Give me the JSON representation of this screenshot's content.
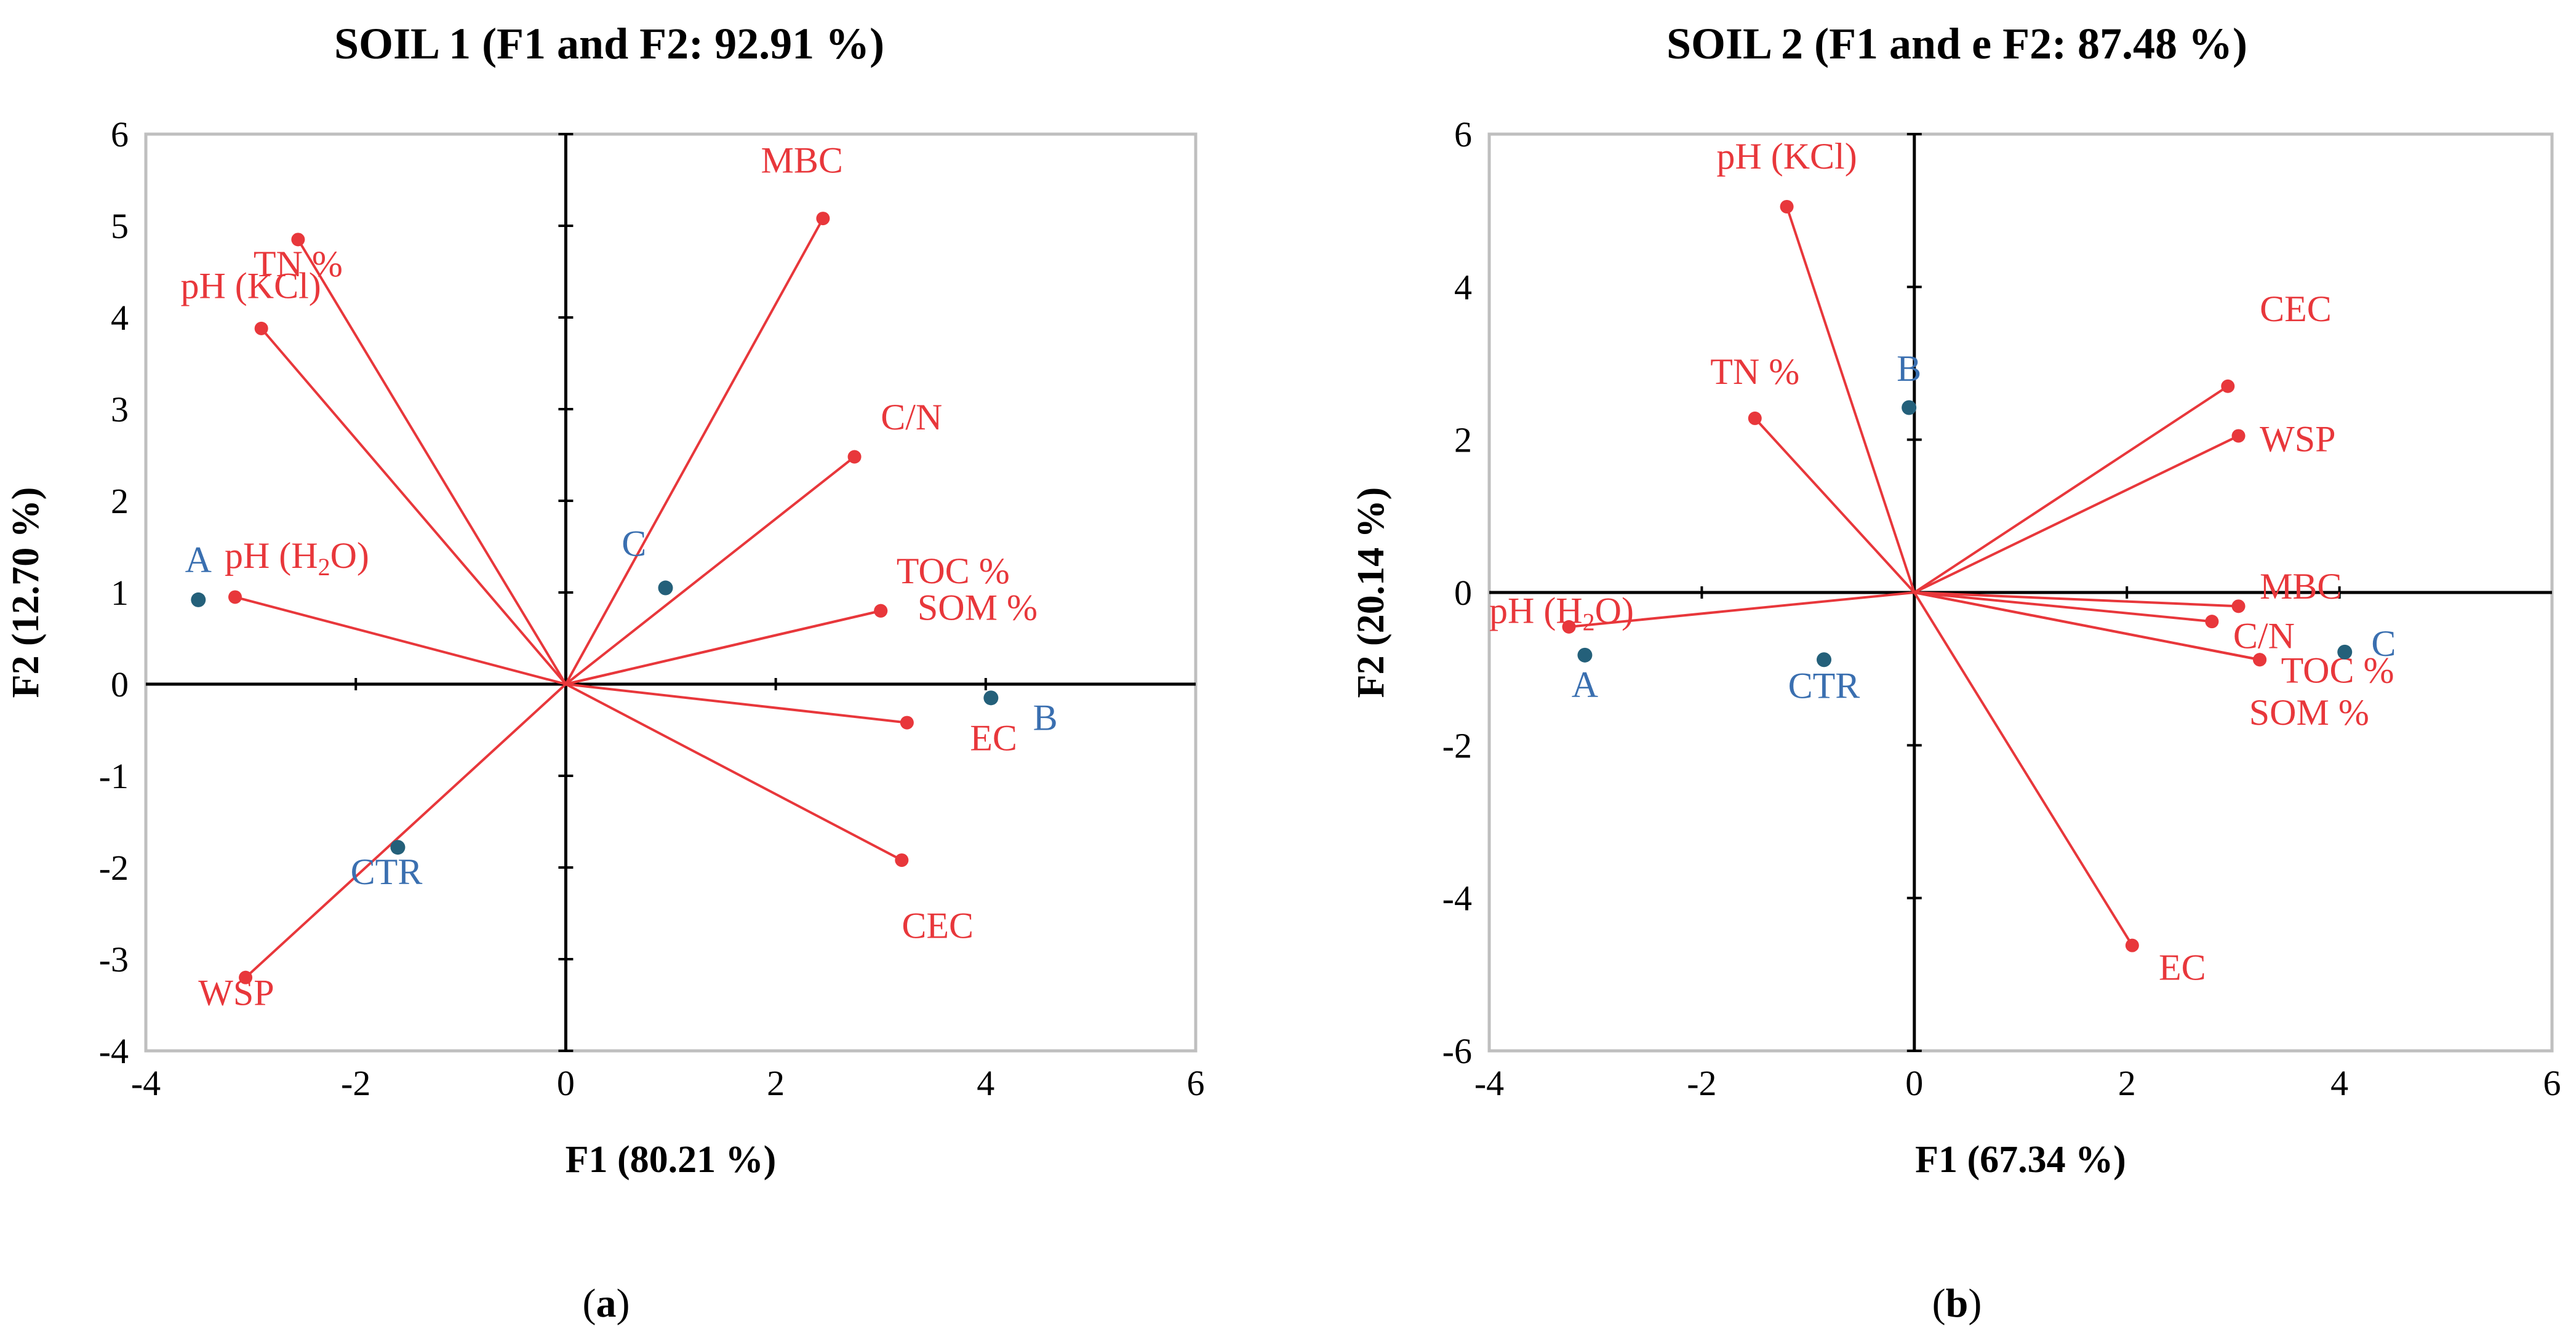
{
  "colors": {
    "variable": "#e8373b",
    "observation_label": "#3a6fb0",
    "observation_point": "#24607a",
    "axis": "#000000",
    "frame": "#bfbfbf"
  },
  "chart_data": [
    {
      "id": "soil1",
      "type": "scatter",
      "subtype": "pca-biplot",
      "title": "SOIL 1 (F1 and F2: 92.91 %)",
      "xlabel": "F1 (80.21 %)",
      "ylabel_main": "F2 (12.70 %)",
      "xlim": [
        -4,
        6
      ],
      "ylim": [
        -4,
        6
      ],
      "xticks": [
        "-4",
        "-2",
        "0",
        "2",
        "4",
        "6"
      ],
      "yticks": [
        "-4",
        "-3",
        "-2",
        "-1",
        "0",
        "1",
        "2",
        "3",
        "4",
        "5",
        "6"
      ],
      "caption": {
        "open": "(",
        "letter": "a",
        "close": ")"
      },
      "variables": [
        {
          "name": "TN %",
          "x": -2.55,
          "y": 4.85,
          "label_anchor": "middle",
          "label_dx": 0,
          "label_dy": -0.4
        },
        {
          "name": "pH (KCl)",
          "x": -2.9,
          "y": 3.88,
          "label_anchor": "middle",
          "label_dx": -0.1,
          "label_dy": 0.33
        },
        {
          "name_main": "pH (H",
          "name_sub": "2",
          "name_tail": "O)",
          "x": -3.15,
          "y": 0.95,
          "label_anchor": "start",
          "label_dx": -0.1,
          "label_dy": 0.32
        },
        {
          "name": "WSP",
          "x": -3.05,
          "y": -3.2,
          "label_anchor": "start",
          "label_dx": -0.45,
          "label_dy": -0.3
        },
        {
          "name": "MBC",
          "x": 2.45,
          "y": 5.08,
          "label_anchor": "middle",
          "label_dx": -0.2,
          "label_dy": 0.5
        },
        {
          "name": "C/N",
          "x": 2.75,
          "y": 2.48,
          "label_anchor": "start",
          "label_dx": 0.25,
          "label_dy": 0.3
        },
        {
          "name": "TOC %",
          "x": 3.0,
          "y": 0.8,
          "label_anchor": "start",
          "label_dx": 0.15,
          "label_dy": 0.3
        },
        {
          "name": "SOM %",
          "x": 3.0,
          "y": 0.8,
          "label_anchor": "start",
          "label_dx": 0.35,
          "label_dy": -0.1
        },
        {
          "name": "EC",
          "x": 3.25,
          "y": -0.42,
          "label_anchor": "start",
          "label_dx": 0.6,
          "label_dy": -0.3
        },
        {
          "name": "CEC",
          "x": 3.2,
          "y": -1.92,
          "label_anchor": "start",
          "label_dx": 0.0,
          "label_dy": -0.85
        }
      ],
      "observations": [
        {
          "name": "A",
          "x": -3.5,
          "y": 0.92,
          "label_dx": 0.0,
          "label_dy": 0.3,
          "label_anchor": "middle"
        },
        {
          "name": "C",
          "x": 0.95,
          "y": 1.05,
          "label_dx": -0.3,
          "label_dy": 0.35,
          "label_anchor": "middle"
        },
        {
          "name": "B",
          "x": 4.05,
          "y": -0.15,
          "label_dx": 0.4,
          "label_dy": -0.35,
          "label_anchor": "start"
        },
        {
          "name": "CTR",
          "x": -1.6,
          "y": -1.78,
          "label_dx": -0.45,
          "label_dy": -0.4,
          "label_anchor": "start"
        }
      ]
    },
    {
      "id": "soil2",
      "type": "scatter",
      "subtype": "pca-biplot",
      "title": "SOIL 2 (F1 and e F2: 87.48 %)",
      "xlabel": "F1 (67.34 %)",
      "ylabel_main": "F2 (20.14 %)",
      "xlim": [
        -4,
        6
      ],
      "ylim": [
        -6,
        6
      ],
      "xticks": [
        "-4",
        "-2",
        "0",
        "2",
        "4",
        "6"
      ],
      "yticks": [
        "-6",
        "-4",
        "-2",
        "0",
        "2",
        "4",
        "6"
      ],
      "caption": {
        "open": "(",
        "letter": "b",
        "close": ")"
      },
      "variables": [
        {
          "name": "pH (KCl)",
          "x": -1.2,
          "y": 5.05,
          "label_anchor": "middle",
          "label_dx": 0,
          "label_dy": 0.5
        },
        {
          "name": "TN %",
          "x": -1.5,
          "y": 2.28,
          "label_anchor": "middle",
          "label_dx": 0,
          "label_dy": 0.45
        },
        {
          "name_main": "pH (H",
          "name_sub": "2",
          "name_tail": "O)",
          "x": -3.25,
          "y": -0.45,
          "label_anchor": "start",
          "label_dx": -0.75,
          "label_dy": 0.05
        },
        {
          "name": "CEC",
          "x": 2.95,
          "y": 2.7,
          "label_anchor": "start",
          "label_dx": 0.3,
          "label_dy": 0.85
        },
        {
          "name": "WSP",
          "x": 3.05,
          "y": 2.05,
          "label_anchor": "start",
          "label_dx": 0.2,
          "label_dy": -0.2
        },
        {
          "name": "MBC",
          "x": 3.05,
          "y": -0.18,
          "label_anchor": "start",
          "label_dx": 0.2,
          "label_dy": 0.1
        },
        {
          "name": "C/N",
          "x": 2.8,
          "y": -0.38,
          "label_anchor": "start",
          "label_dx": 0.2,
          "label_dy": -0.35
        },
        {
          "name": "TOC %",
          "x": 3.25,
          "y": -0.88,
          "label_anchor": "start",
          "label_dx": 0.2,
          "label_dy": -0.3
        },
        {
          "name": "SOM %",
          "x": 3.25,
          "y": -0.88,
          "label_anchor": "start",
          "label_dx": -0.1,
          "label_dy": -0.85
        },
        {
          "name": "EC",
          "x": 2.05,
          "y": -4.62,
          "label_anchor": "start",
          "label_dx": 0.25,
          "label_dy": -0.45
        }
      ],
      "observations": [
        {
          "name": "B",
          "x": -0.05,
          "y": 2.42,
          "label_dx": 0.0,
          "label_dy": 0.35,
          "label_anchor": "middle"
        },
        {
          "name": "A",
          "x": -3.1,
          "y": -0.82,
          "label_dx": 0.0,
          "label_dy": -0.55,
          "label_anchor": "middle"
        },
        {
          "name": "CTR",
          "x": -0.85,
          "y": -0.88,
          "label_dx": 0.0,
          "label_dy": -0.5,
          "label_anchor": "middle"
        },
        {
          "name": "C",
          "x": 4.05,
          "y": -0.78,
          "label_dx": 0.25,
          "label_dy": -0.05,
          "label_anchor": "start"
        }
      ]
    }
  ]
}
